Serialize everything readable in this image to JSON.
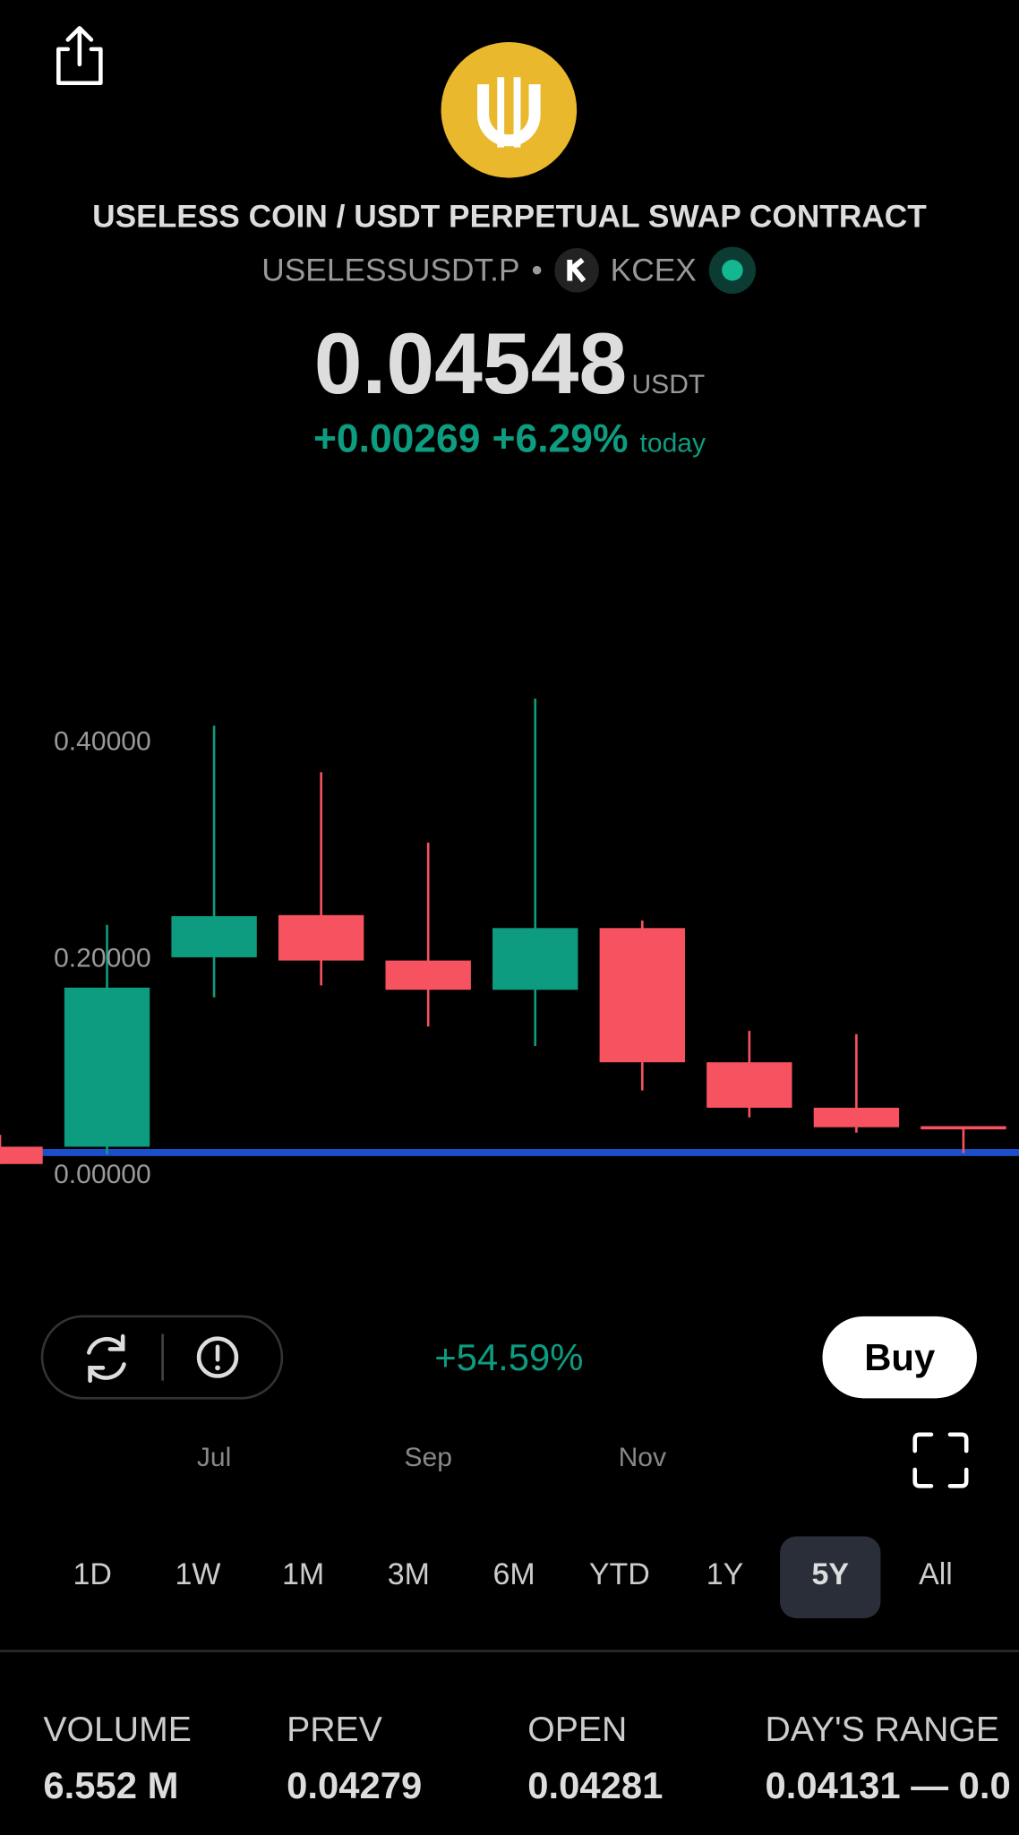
{
  "header": {
    "title": "USELESS COIN / USDT PERPETUAL SWAP CONTRACT",
    "ticker": "USELESSUSDT.P",
    "separator": "•",
    "exchange": "KCEX",
    "price": "0.04548",
    "unit": "USDT",
    "change": "+0.00269",
    "change_percent": "+6.29%",
    "period": "today"
  },
  "chart_data": {
    "type": "candlestick",
    "categories": [
      null,
      null,
      "Jul",
      null,
      "Sep",
      null,
      "Nov",
      null,
      null,
      null
    ],
    "open": [
      0.027,
      0.027,
      0.202,
      0.241,
      0.199,
      0.172,
      0.229,
      0.105,
      0.063,
      0.046
    ],
    "high": [
      0.038,
      0.232,
      0.416,
      0.373,
      0.308,
      0.441,
      0.236,
      0.134,
      0.131,
      0.046
    ],
    "low": [
      0.011,
      0.02,
      0.165,
      0.176,
      0.138,
      0.12,
      0.079,
      0.054,
      0.04,
      0.021
    ],
    "close": [
      0.011,
      0.174,
      0.24,
      0.199,
      0.172,
      0.229,
      0.105,
      0.063,
      0.045,
      0.043
    ],
    "up_color": "#0e9c80",
    "down_color": "#f7525f",
    "ylim": [
      -0.04,
      0.48
    ],
    "yticks": [
      {
        "value": 0,
        "label": "0.00000"
      },
      {
        "value": 0.2,
        "label": "0.20000"
      },
      {
        "value": 0.4,
        "label": "0.40000"
      }
    ],
    "grid": false
  },
  "controls": {
    "return": "+54.59%",
    "buy": "Buy"
  },
  "ranges": {
    "items": [
      "1D",
      "1W",
      "1M",
      "3M",
      "6M",
      "YTD",
      "1Y",
      "5Y",
      "All"
    ],
    "selected": 7
  },
  "stats": [
    {
      "label": "VOLUME",
      "value": "6.552 M"
    },
    {
      "label": "PREV",
      "value": "0.04279"
    },
    {
      "label": "OPEN",
      "value": "0.04281"
    },
    {
      "label": "DAY'S RANGE",
      "value": "0.04131 — 0.0"
    }
  ]
}
